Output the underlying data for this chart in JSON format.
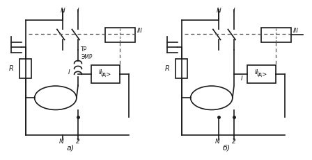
{
  "title_a": "a)",
  "title_b": "б)",
  "background": "#ffffff",
  "line_color": "#1a1a1a",
  "dashed_color": "#555555",
  "label_III": "III",
  "label_II": "II",
  "label_I_diag_a": "I",
  "label_I_diag_b": "I",
  "label_EMR": "ЭМР",
  "label_TR": "ТР",
  "label_R": "R",
  "label_N_top": "N",
  "label_1_top": "I",
  "label_N_bot": "N",
  "label_2": "2",
  "label_Id": "Iд>"
}
